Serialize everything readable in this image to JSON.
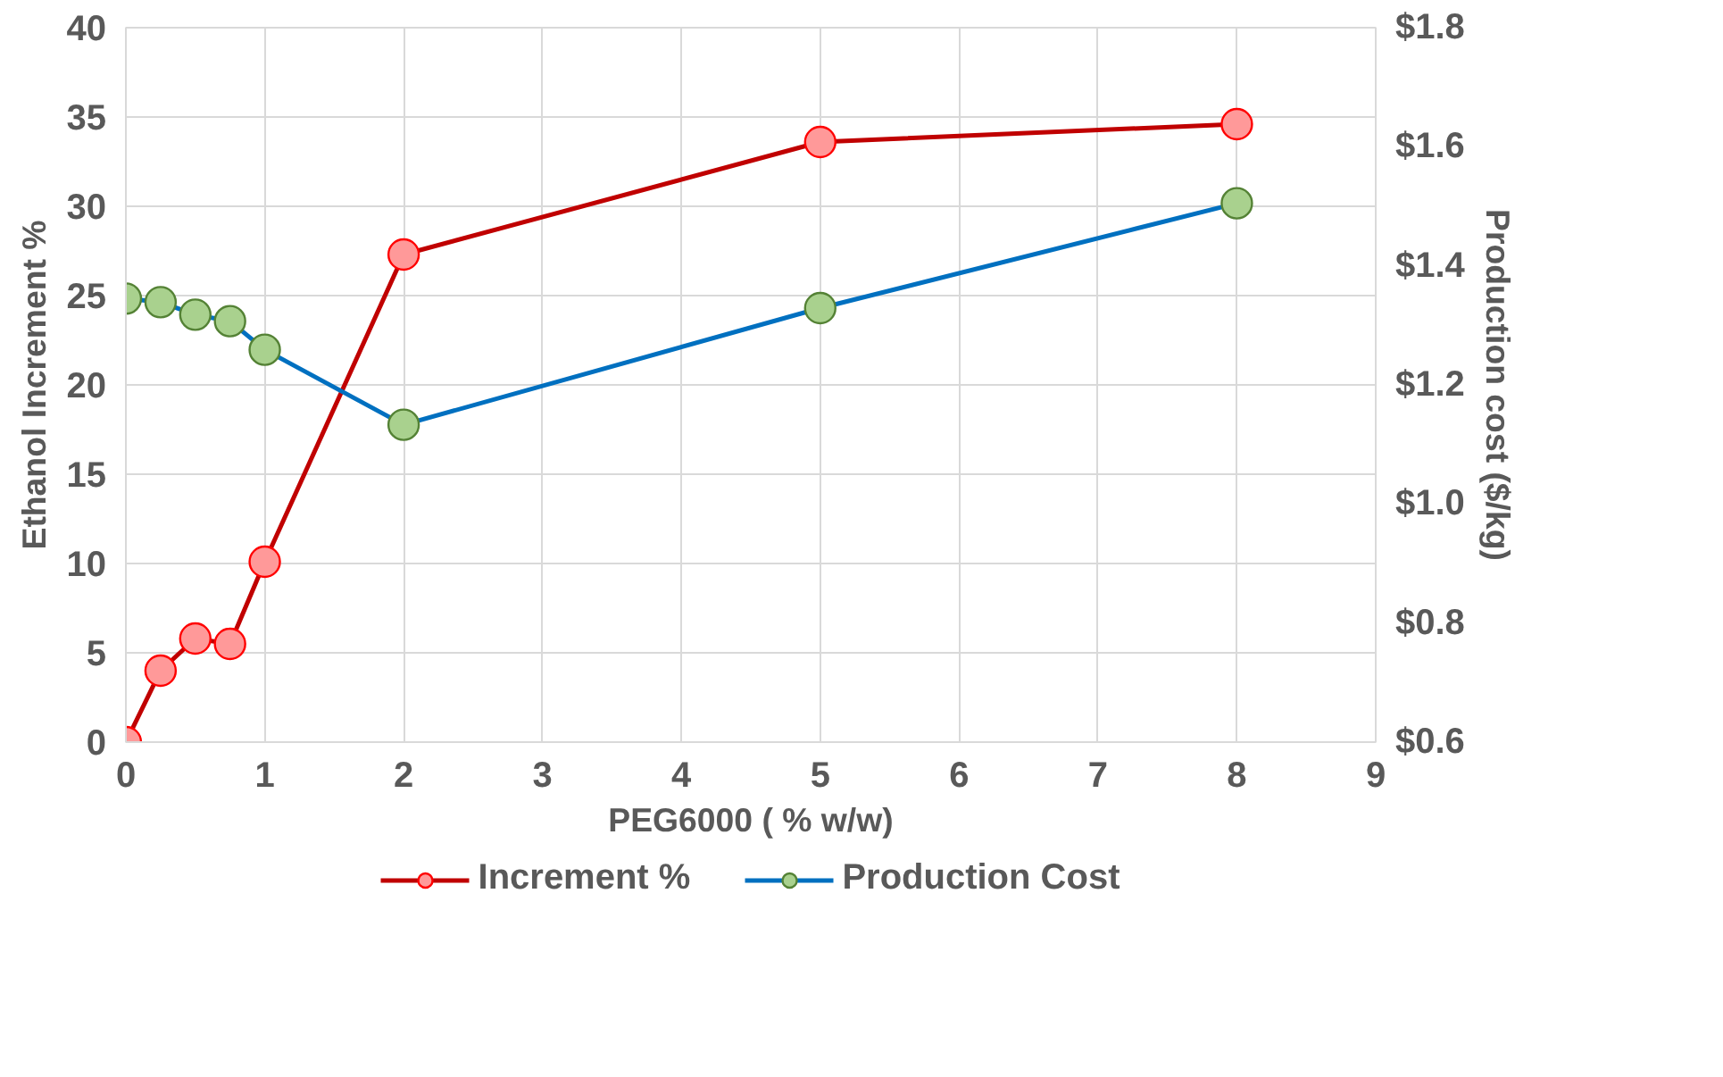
{
  "chart_data": {
    "type": "line",
    "xlabel": "PEG6000 ( % w/w)",
    "ylabel": "Ethanol Increment %",
    "y2label": "Production cost ($/kg)",
    "x": [
      0,
      0.25,
      0.5,
      0.75,
      1,
      2,
      5,
      8
    ],
    "series": [
      {
        "name": "Increment %",
        "color": "#c00000",
        "values": [
          0,
          4.0,
          5.8,
          5.5,
          10.1,
          27.3,
          33.6,
          34.6
        ]
      },
      {
        "name": "Production Cost",
        "color": "#0070c0",
        "axis": "y2",
        "values": [
          1.345,
          1.339,
          1.318,
          1.307,
          1.259,
          1.133,
          1.329,
          1.505
        ]
      }
    ],
    "xlim": [
      0,
      9
    ],
    "xticks": [
      0,
      1,
      2,
      3,
      4,
      5,
      6,
      7,
      8,
      9
    ],
    "ylim": [
      0,
      40
    ],
    "yticks": [
      0,
      5,
      10,
      15,
      20,
      25,
      30,
      35,
      40
    ],
    "y2lim": [
      0.6,
      1.8
    ],
    "y2ticks": [
      {
        "value": 0.6,
        "label": "$0.6"
      },
      {
        "value": 0.8,
        "label": "$0.8"
      },
      {
        "value": 1.0,
        "label": "$1.0"
      },
      {
        "value": 1.2,
        "label": "$1.2"
      },
      {
        "value": 1.4,
        "label": "$1.4"
      },
      {
        "value": 1.6,
        "label": "$1.6"
      },
      {
        "value": 1.8,
        "label": "$1.8"
      }
    ],
    "grid": true,
    "legend": "bottom",
    "marker": "circle",
    "line_style": "solid"
  }
}
